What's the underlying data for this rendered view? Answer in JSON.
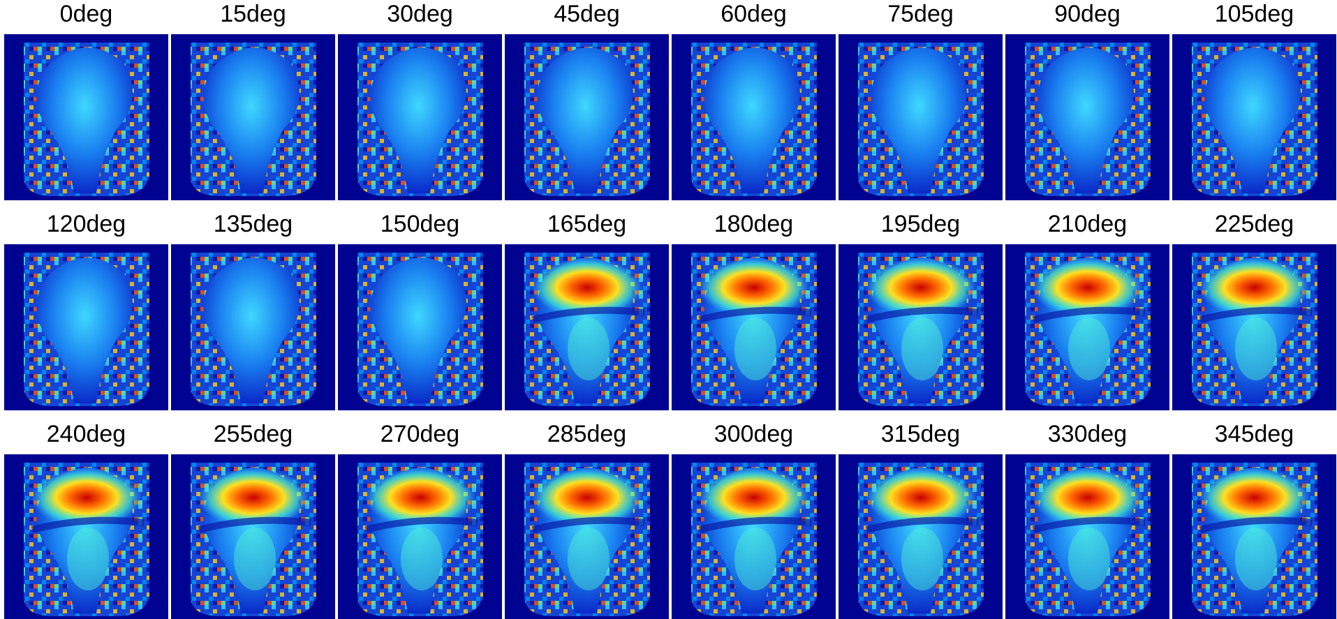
{
  "panels": [
    {
      "label": "0deg"
    },
    {
      "label": "15deg"
    },
    {
      "label": "30deg"
    },
    {
      "label": "45deg"
    },
    {
      "label": "60deg"
    },
    {
      "label": "75deg"
    },
    {
      "label": "90deg"
    },
    {
      "label": "105deg"
    },
    {
      "label": "120deg"
    },
    {
      "label": "135deg"
    },
    {
      "label": "150deg"
    },
    {
      "label": "165deg"
    },
    {
      "label": "180deg"
    },
    {
      "label": "195deg"
    },
    {
      "label": "210deg"
    },
    {
      "label": "225deg"
    },
    {
      "label": "240deg"
    },
    {
      "label": "255deg"
    },
    {
      "label": "270deg"
    },
    {
      "label": "285deg"
    },
    {
      "label": "300deg"
    },
    {
      "label": "315deg"
    },
    {
      "label": "330deg"
    },
    {
      "label": "345deg"
    }
  ]
}
